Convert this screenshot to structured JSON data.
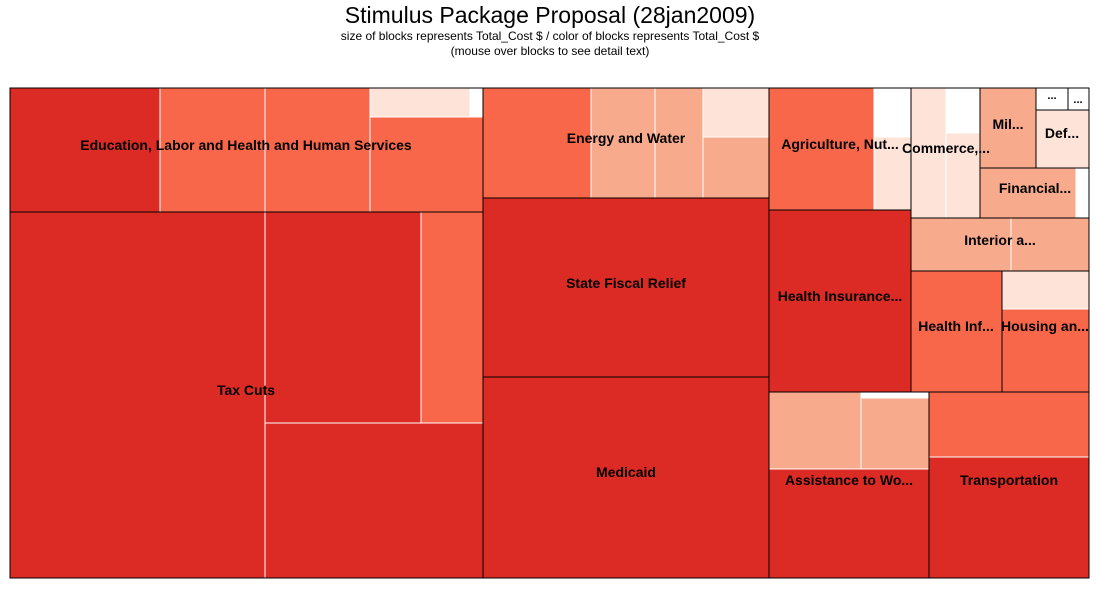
{
  "title": "Stimulus Package Proposal (28jan2009)",
  "subtitle": "size of blocks represents Total_Cost $ / color of blocks represents Total_Cost $",
  "note": "(mouse over blocks to see detail text)",
  "colors": {
    "c1": "#dc2b24",
    "c2": "#f9674b",
    "c3": "#f8aa8d",
    "c4": "#fde3d8",
    "border": "#000000",
    "inner_border": "#ffffff"
  },
  "chart_data": {
    "type": "treemap",
    "groups": [
      {
        "label": "Education, Labor and Health and Human Services"
      },
      {
        "label": "Tax Cuts"
      },
      {
        "label": "Energy and Water"
      },
      {
        "label": "State Fiscal Relief"
      },
      {
        "label": "Medicaid"
      },
      {
        "label": "Agriculture, Nut..."
      },
      {
        "label": "Health Insurance..."
      },
      {
        "label": "Assistance to Wo..."
      },
      {
        "label": "Transportation"
      },
      {
        "label": "Commerce,..."
      },
      {
        "label": "Mil..."
      },
      {
        "label": "Def..."
      },
      {
        "label": "Financial..."
      },
      {
        "label": "Interior a..."
      },
      {
        "label": "Health Inf..."
      },
      {
        "label": "Housing an..."
      },
      {
        "label": "..."
      },
      {
        "label": "..."
      }
    ]
  }
}
